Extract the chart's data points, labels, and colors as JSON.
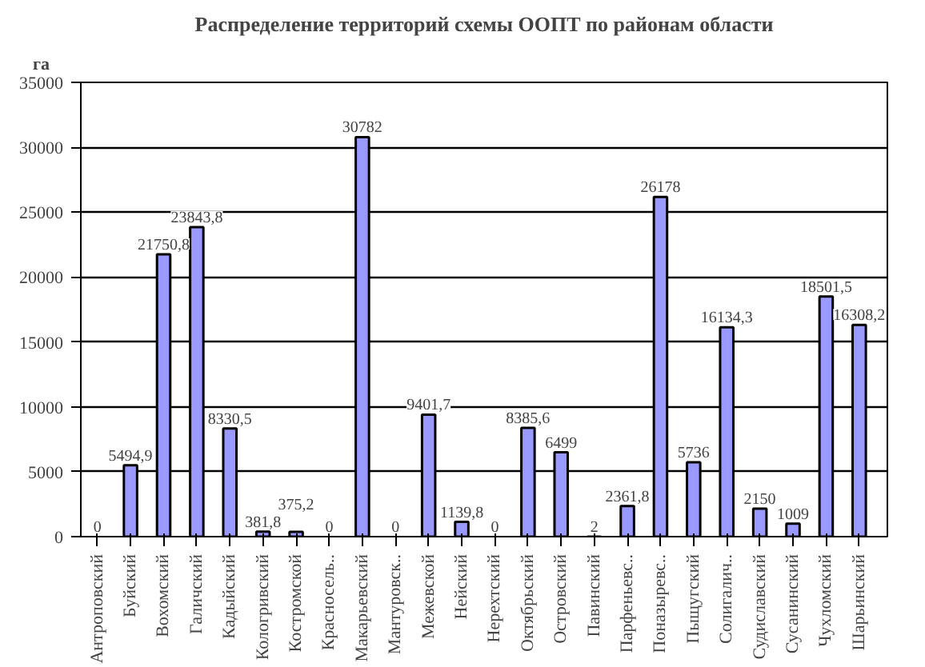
{
  "chart_data": {
    "type": "bar",
    "title": "Распределение территорий схемы ООПТ по районам области",
    "ylabel": "га",
    "categories": [
      "Антроповский",
      "Буйский",
      "Вохомский",
      "Галичский",
      "Кадыйский",
      "Кологривский",
      "Костромской",
      "Красносель..",
      "Макарьевский",
      "Мантуровск..",
      "Межевской",
      "Нейский",
      "Нерехтский",
      "Октябрьский",
      "Островский",
      "Павинский",
      "Парфеньевс..",
      "Поназыревс..",
      "Пыщугский",
      "Солигалич..",
      "Судиславский",
      "Сусанинский",
      "Чухломский",
      "Шарьинский"
    ],
    "values": [
      0,
      5494.9,
      21750.8,
      23843.8,
      8330.5,
      381.8,
      375.2,
      0,
      30782,
      0,
      9401.7,
      1139.8,
      0,
      8385.6,
      6499,
      2,
      2361.8,
      26178,
      5736,
      16134.3,
      2150,
      1009,
      18501.5,
      16308.2
    ],
    "value_labels": [
      "0",
      "5494,9",
      "21750,8",
      "23843,8",
      "8330,5",
      "381,8",
      "375,2",
      "0",
      "30782",
      "0",
      "9401,7",
      "1139,8",
      "0",
      "8385,6",
      "6499",
      "2",
      "2361,8",
      "26178",
      "5736",
      "16134,3",
      "2150",
      "1009",
      "18501,5",
      "16308,2"
    ],
    "color": "#9999ff",
    "ylim": [
      0,
      35000
    ],
    "yticks": [
      0,
      5000,
      10000,
      15000,
      20000,
      25000,
      30000,
      35000
    ],
    "grid": "y"
  }
}
